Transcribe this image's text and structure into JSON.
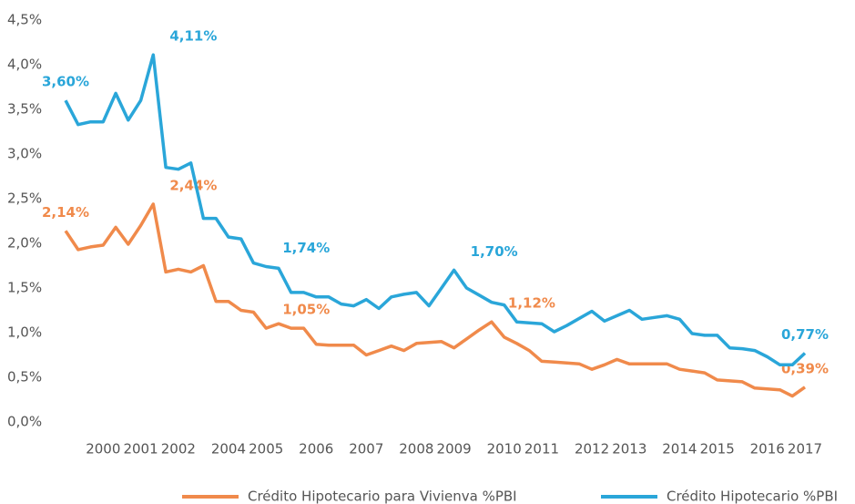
{
  "chart_data": {
    "type": "line",
    "categories": [
      null,
      null,
      null,
      "2000",
      null,
      null,
      "2001",
      null,
      null,
      "2002",
      null,
      null,
      null,
      "2004",
      null,
      null,
      "2005",
      null,
      null,
      null,
      "2006",
      null,
      null,
      null,
      "2007",
      null,
      null,
      null,
      "2008",
      null,
      null,
      "2009",
      null,
      null,
      null,
      "2010",
      null,
      null,
      "2011",
      null,
      null,
      null,
      "2012",
      null,
      null,
      "2013",
      null,
      null,
      null,
      "2014",
      null,
      null,
      "2015",
      null,
      null,
      null,
      "2016",
      null,
      null,
      "2017"
    ],
    "series": [
      {
        "name": "Crédito Hipotecario para Vivienva %PBI",
        "color": "#f08a4b",
        "values": [
          2.14,
          1.93,
          1.96,
          1.98,
          2.18,
          1.99,
          2.2,
          2.44,
          1.68,
          1.71,
          1.68,
          1.75,
          1.35,
          1.35,
          1.25,
          1.23,
          1.05,
          1.1,
          1.05,
          1.05,
          0.87,
          0.86,
          0.86,
          0.86,
          0.75,
          0.8,
          0.85,
          0.8,
          0.88,
          0.89,
          0.9,
          0.83,
          0.93,
          1.03,
          1.12,
          0.95,
          0.88,
          0.8,
          0.68,
          0.67,
          0.66,
          0.65,
          0.59,
          0.64,
          0.7,
          0.65,
          0.65,
          0.65,
          0.65,
          0.59,
          0.57,
          0.55,
          0.47,
          0.46,
          0.45,
          0.38,
          0.37,
          0.36,
          0.29,
          0.39
        ],
        "value_labels": [
          "2,14%",
          null,
          null,
          null,
          null,
          null,
          null,
          "2,44%",
          null,
          null,
          null,
          null,
          null,
          null,
          null,
          null,
          "1,05%",
          null,
          null,
          null,
          null,
          null,
          null,
          null,
          null,
          null,
          null,
          null,
          null,
          null,
          null,
          null,
          null,
          null,
          "1,12%",
          null,
          null,
          null,
          null,
          null,
          null,
          null,
          null,
          null,
          null,
          null,
          null,
          null,
          null,
          null,
          null,
          null,
          null,
          null,
          null,
          null,
          null,
          null,
          null,
          "0,39%"
        ]
      },
      {
        "name": "Crédito Hipotecario %PBI",
        "color": "#2aa6d9",
        "values": [
          3.6,
          3.33,
          3.36,
          3.36,
          3.68,
          3.38,
          3.6,
          4.11,
          2.85,
          2.83,
          2.9,
          2.28,
          2.28,
          2.07,
          2.05,
          1.78,
          1.74,
          1.72,
          1.45,
          1.45,
          1.4,
          1.4,
          1.32,
          1.3,
          1.37,
          1.27,
          1.4,
          1.43,
          1.45,
          1.3,
          1.5,
          1.7,
          1.5,
          1.42,
          1.34,
          1.31,
          1.12,
          1.11,
          1.1,
          1.01,
          1.08,
          1.16,
          1.24,
          1.13,
          1.19,
          1.25,
          1.15,
          1.17,
          1.19,
          1.15,
          0.99,
          0.97,
          0.97,
          0.83,
          0.82,
          0.8,
          0.73,
          0.64,
          0.64,
          0.77
        ],
        "value_labels": [
          "3,60%",
          null,
          null,
          null,
          null,
          null,
          null,
          "4,11%",
          null,
          null,
          null,
          null,
          null,
          null,
          null,
          null,
          "1,74%",
          null,
          null,
          null,
          null,
          null,
          null,
          null,
          null,
          null,
          null,
          null,
          null,
          null,
          null,
          "1,70%",
          null,
          null,
          null,
          null,
          null,
          null,
          null,
          null,
          null,
          null,
          null,
          null,
          null,
          null,
          null,
          null,
          null,
          null,
          null,
          null,
          null,
          null,
          null,
          null,
          null,
          null,
          null,
          "0,77%"
        ]
      }
    ],
    "ylim": [
      0,
      4.5
    ],
    "yticks": [
      {
        "value": 0,
        "label": "0,0%"
      },
      {
        "value": 0.5,
        "label": "0,5%"
      },
      {
        "value": 1,
        "label": "1,0%"
      },
      {
        "value": 1.5,
        "label": "1,5%"
      },
      {
        "value": 2,
        "label": "2,0%"
      },
      {
        "value": 2.5,
        "label": "2,5%"
      },
      {
        "value": 3,
        "label": "3,0%"
      },
      {
        "value": 3.5,
        "label": "3,5%"
      },
      {
        "value": 4,
        "label": "4,0%"
      },
      {
        "value": 4.5,
        "label": "4,5%"
      }
    ],
    "grid": false,
    "legend": "bottom"
  }
}
